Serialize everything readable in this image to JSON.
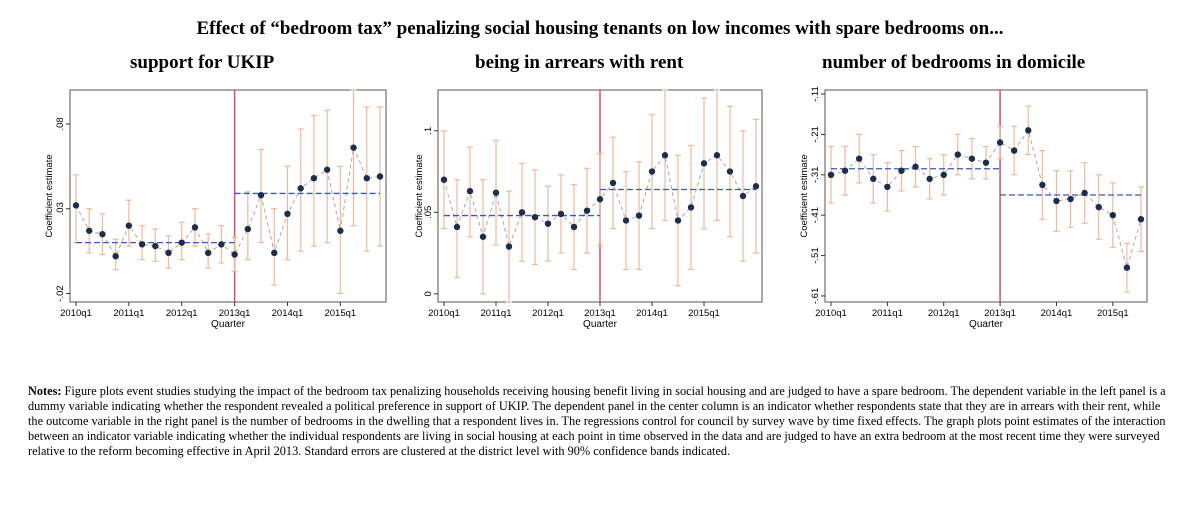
{
  "title": "Effect of “bedroom tax” penalizing social housing tenants on low incomes with spare bedrooms on...",
  "notes": {
    "label": "Notes:",
    "text": "Figure plots event studies studying the impact of the bedroom tax penalizing households receiving housing benefit living in social housing and are judged to have a spare bedroom. The dependent variable in the left panel is a dummy variable indicating whether the respondent revealed a political preference in support of UKIP. The dependent panel in the center column is an indicator whether respondents state that they are in arrears with their rent, while the outcome variable in the right panel is the number of bedrooms in the dwelling that a respondent lives in. The regressions control for council by survey wave by time fixed effects. The graph plots point estimates of the interaction between an indicator variable indicating whether the individual respondents are living in social housing at each point in time observed in the data and are judged to have an extra bedroom at the most recent time they were surveyed relative to the reform becoming effective in April 2013. Standard errors are clustered at the district level with 90% confidence bands indicated."
  },
  "colors": {
    "marker": "#1f2d4d",
    "ci": "#f0b99a",
    "connect": "#aaaaaa",
    "mean": "#3b55c9",
    "reform": "#c8556b",
    "frame": "#555555"
  },
  "chart_data": [
    {
      "type": "scatter",
      "title": "support for UKIP",
      "xlabel": "Quarter",
      "ylabel": "Coefficient estimate",
      "xtick_labels": [
        "2010q1",
        "2011q1",
        "2012q1",
        "2013q1",
        "2014q1",
        "2015q1"
      ],
      "xtick_index": [
        0,
        4,
        8,
        12,
        16,
        20
      ],
      "ytick_labels": [
        "-.02",
        ".03",
        ".08"
      ],
      "ytick_values": [
        -0.02,
        0.03,
        0.08
      ],
      "ylim": [
        -0.025,
        0.1
      ],
      "reform_index": 12,
      "values": [
        0.032,
        0.017,
        0.015,
        0.002,
        0.02,
        0.009,
        0.008,
        0.004,
        0.01,
        0.019,
        0.004,
        0.009,
        0.003,
        0.018,
        0.038,
        0.004,
        0.027,
        0.042,
        0.048,
        0.053,
        0.017,
        0.066,
        0.048,
        0.049
      ],
      "ci_low": [
        0.01,
        0.004,
        0.003,
        -0.006,
        0.008,
        0.0,
        -0.001,
        -0.005,
        0.0,
        0.008,
        -0.005,
        -0.002,
        -0.007,
        0.0,
        0.01,
        -0.015,
        0.0,
        0.005,
        0.008,
        0.01,
        -0.02,
        0.02,
        0.005,
        0.008
      ],
      "ci_high": [
        0.05,
        0.03,
        0.027,
        0.012,
        0.035,
        0.02,
        0.018,
        0.014,
        0.022,
        0.03,
        0.015,
        0.02,
        0.013,
        0.04,
        0.065,
        0.03,
        0.055,
        0.077,
        0.085,
        0.088,
        0.055,
        0.1,
        0.09,
        0.09
      ],
      "mean_pre": 0.01,
      "mean_post": 0.039
    },
    {
      "type": "scatter",
      "title": "being in arrears with rent",
      "xlabel": "Quarter",
      "ylabel": "Coefficient estimate",
      "xtick_labels": [
        "2010q1",
        "2011q1",
        "2012q1",
        "2013q1",
        "2014q1",
        "2015q1"
      ],
      "xtick_index": [
        0,
        4,
        8,
        12,
        16,
        20
      ],
      "ytick_labels": [
        "0",
        ".05",
        ".1"
      ],
      "ytick_values": [
        0,
        0.05,
        0.1
      ],
      "ylim": [
        -0.005,
        0.125
      ],
      "reform_index": 12,
      "values": [
        0.07,
        0.041,
        0.063,
        0.035,
        0.062,
        0.029,
        0.05,
        0.047,
        0.043,
        0.049,
        0.041,
        0.051,
        0.058,
        0.068,
        0.045,
        0.048,
        0.075,
        0.085,
        0.045,
        0.053,
        0.08,
        0.085,
        0.075,
        0.06,
        0.066
      ],
      "ci_low": [
        0.04,
        0.01,
        0.035,
        0.0,
        0.03,
        -0.005,
        0.02,
        0.018,
        0.02,
        0.025,
        0.015,
        0.025,
        0.03,
        0.04,
        0.015,
        0.015,
        0.04,
        0.045,
        0.005,
        0.015,
        0.04,
        0.045,
        0.035,
        0.02,
        0.025
      ],
      "ci_high": [
        0.1,
        0.07,
        0.09,
        0.07,
        0.094,
        0.063,
        0.08,
        0.076,
        0.066,
        0.073,
        0.067,
        0.077,
        0.086,
        0.096,
        0.075,
        0.081,
        0.11,
        0.125,
        0.085,
        0.091,
        0.12,
        0.125,
        0.115,
        0.1,
        0.107
      ],
      "mean_pre": 0.048,
      "mean_post": 0.064
    },
    {
      "type": "scatter",
      "title": "number of bedrooms in domicile",
      "xlabel": "Quarter",
      "ylabel": "Coefficient estimate",
      "xtick_labels": [
        "2010q1",
        "2011q1",
        "2012q1",
        "2013q1",
        "2014q1",
        "2015q1"
      ],
      "xtick_index": [
        0,
        4,
        8,
        12,
        16,
        20
      ],
      "ytick_labels": [
        "-.61",
        "-.51",
        "-.41",
        "-.31",
        "-.21",
        "-.11"
      ],
      "ytick_values": [
        -0.61,
        -0.51,
        -0.41,
        -0.31,
        -0.21,
        -0.11
      ],
      "ylim": [
        -0.625,
        -0.1
      ],
      "reform_index": 12,
      "values": [
        -0.31,
        -0.3,
        -0.27,
        -0.32,
        -0.34,
        -0.3,
        -0.29,
        -0.32,
        -0.31,
        -0.26,
        -0.27,
        -0.28,
        -0.23,
        -0.25,
        -0.2,
        -0.335,
        -0.375,
        -0.37,
        -0.355,
        -0.39,
        -0.41,
        -0.54,
        -0.42
      ],
      "ci_low": [
        -0.38,
        -0.36,
        -0.33,
        -0.38,
        -0.4,
        -0.35,
        -0.34,
        -0.37,
        -0.36,
        -0.31,
        -0.32,
        -0.32,
        -0.27,
        -0.31,
        -0.26,
        -0.42,
        -0.45,
        -0.44,
        -0.43,
        -0.47,
        -0.49,
        -0.6,
        -0.5
      ],
      "ci_high": [
        -0.24,
        -0.24,
        -0.21,
        -0.26,
        -0.28,
        -0.25,
        -0.24,
        -0.27,
        -0.26,
        -0.21,
        -0.22,
        -0.24,
        -0.19,
        -0.19,
        -0.14,
        -0.25,
        -0.3,
        -0.3,
        -0.28,
        -0.31,
        -0.33,
        -0.48,
        -0.34
      ],
      "mean_pre": -0.295,
      "mean_post": -0.36
    }
  ]
}
